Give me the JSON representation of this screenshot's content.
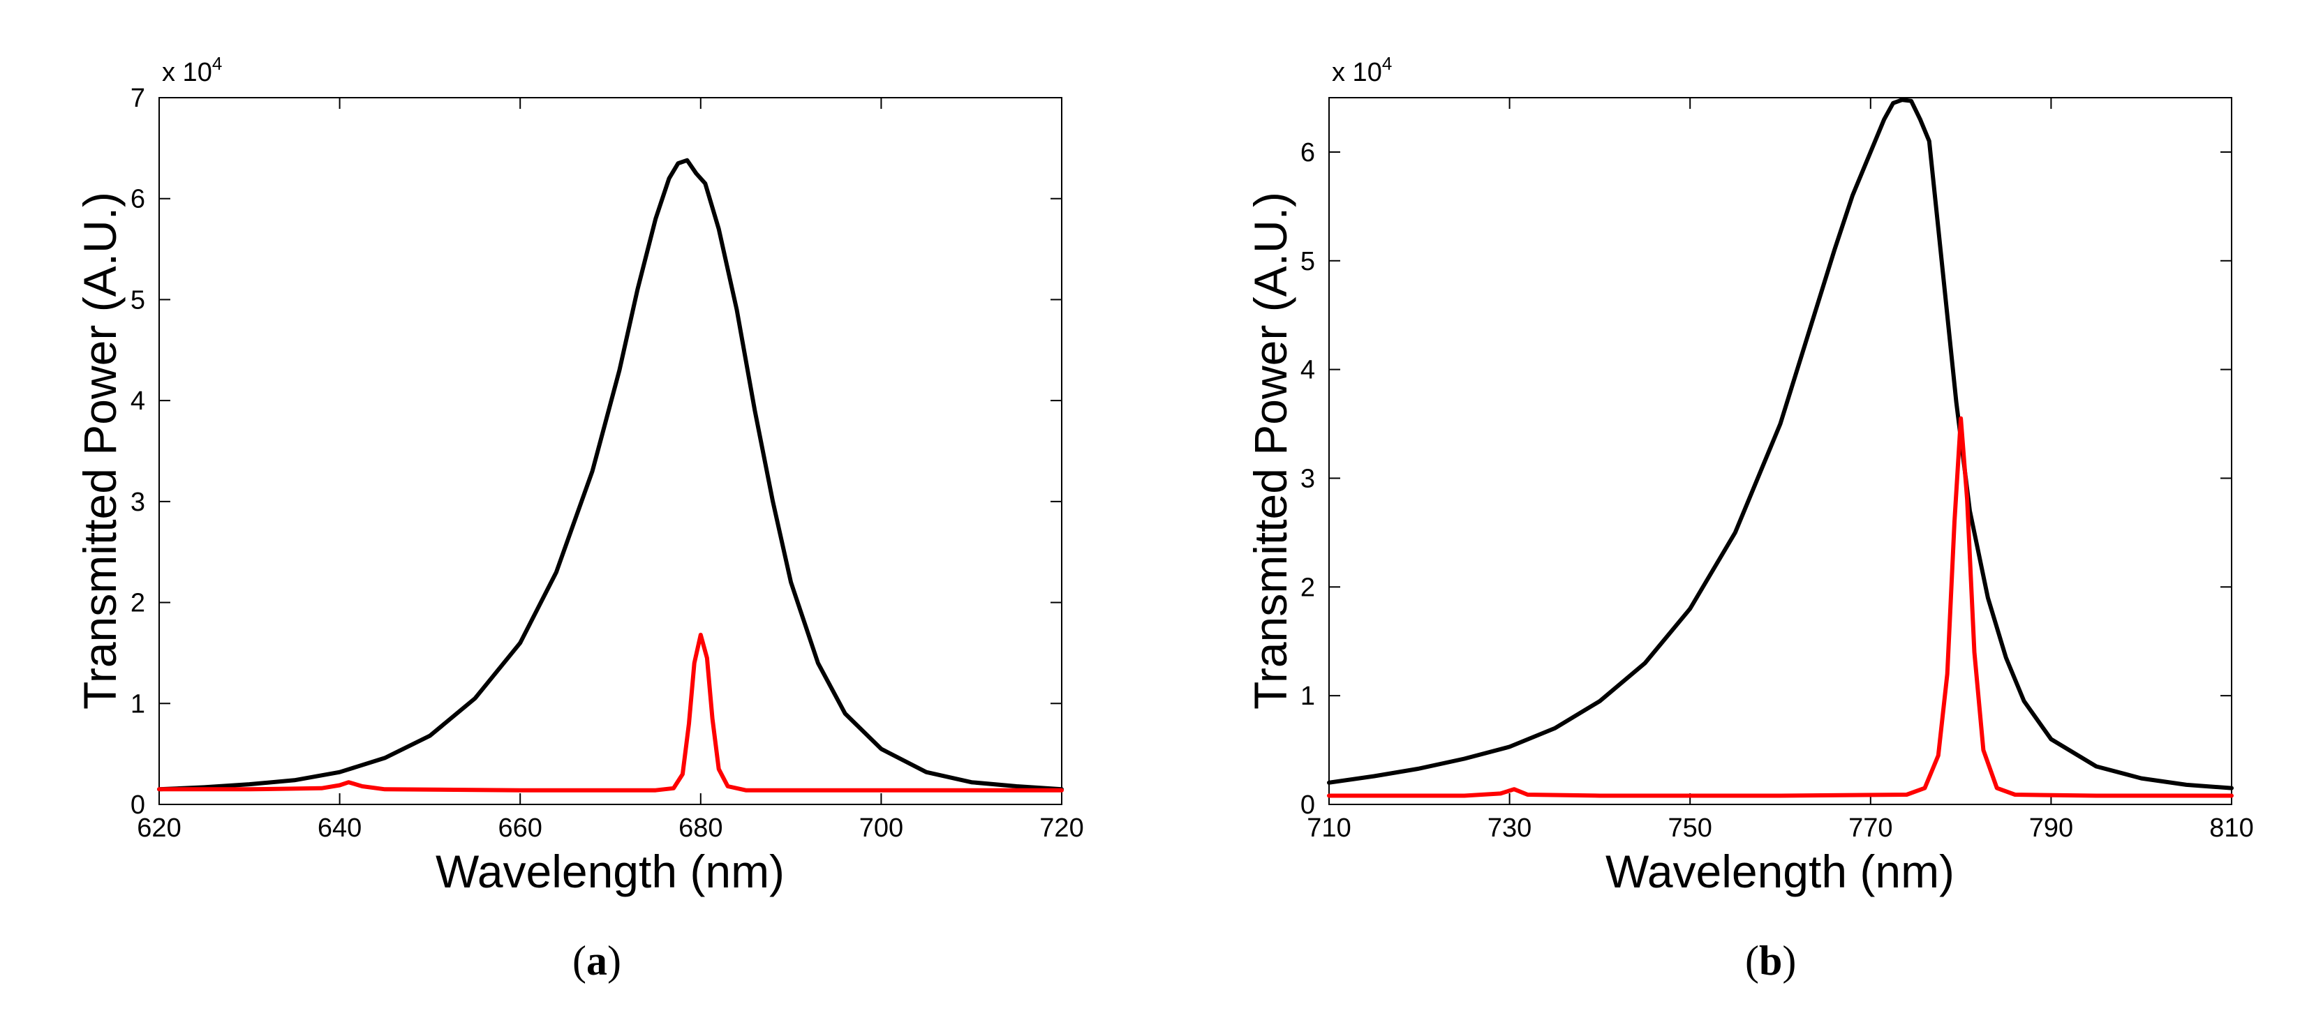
{
  "chart_data": [
    {
      "type": "line",
      "panel_label": "a",
      "caption_open": "(",
      "caption_close": ")",
      "xlabel": "Wavelength (nm)",
      "ylabel": "Transmitted Power (A.U.)",
      "y_multiplier": "x 10",
      "y_multiplier_exp": "4",
      "xlim": [
        620,
        720
      ],
      "ylim": [
        0,
        7
      ],
      "xticks": [
        620,
        640,
        660,
        680,
        700,
        720
      ],
      "yticks": [
        0,
        1,
        2,
        3,
        4,
        5,
        6,
        7
      ],
      "series": [
        {
          "name": "black",
          "color": "#000000",
          "x": [
            620,
            625,
            630,
            635,
            640,
            645,
            650,
            655,
            660,
            664,
            668,
            671,
            673,
            675,
            676.5,
            677.5,
            678.5,
            679.5,
            680.5,
            682,
            684,
            686,
            688,
            690,
            693,
            696,
            700,
            705,
            710,
            715,
            720
          ],
          "y": [
            0.15,
            0.17,
            0.2,
            0.24,
            0.32,
            0.46,
            0.68,
            1.05,
            1.6,
            2.3,
            3.3,
            4.3,
            5.1,
            5.8,
            6.2,
            6.35,
            6.38,
            6.25,
            6.15,
            5.7,
            4.9,
            3.9,
            3.0,
            2.2,
            1.4,
            0.9,
            0.55,
            0.32,
            0.22,
            0.18,
            0.15
          ]
        },
        {
          "name": "red",
          "color": "#ff0000",
          "x": [
            620,
            630,
            638,
            640,
            641,
            642.5,
            645,
            660,
            675,
            677,
            678,
            678.7,
            679.3,
            680,
            680.7,
            681.3,
            682,
            683,
            685,
            700,
            720
          ],
          "y": [
            0.15,
            0.15,
            0.16,
            0.19,
            0.22,
            0.18,
            0.15,
            0.14,
            0.14,
            0.16,
            0.3,
            0.8,
            1.4,
            1.68,
            1.45,
            0.85,
            0.35,
            0.18,
            0.14,
            0.14,
            0.14
          ]
        }
      ]
    },
    {
      "type": "line",
      "panel_label": "b",
      "caption_open": "(",
      "caption_close": ")",
      "xlabel": "Wavelength (nm)",
      "ylabel": "Transmitted Power (A.U.)",
      "y_multiplier": "x 10",
      "y_multiplier_exp": "4",
      "xlim": [
        710,
        810
      ],
      "ylim": [
        0,
        6.5
      ],
      "xticks": [
        710,
        730,
        750,
        770,
        790,
        810
      ],
      "yticks": [
        0,
        1,
        2,
        3,
        4,
        5,
        6
      ],
      "series": [
        {
          "name": "black",
          "color": "#000000",
          "x": [
            710,
            715,
            720,
            725,
            730,
            735,
            740,
            745,
            750,
            755,
            760,
            763,
            766,
            768,
            770,
            771.5,
            772.5,
            773.5,
            774.5,
            775.5,
            776.5,
            777.5,
            778.5,
            779.5,
            781,
            783,
            785,
            787,
            790,
            795,
            800,
            805,
            810
          ],
          "y": [
            0.2,
            0.26,
            0.33,
            0.42,
            0.53,
            0.7,
            0.95,
            1.3,
            1.8,
            2.5,
            3.5,
            4.3,
            5.1,
            5.6,
            6.0,
            6.3,
            6.45,
            6.48,
            6.47,
            6.3,
            6.1,
            5.3,
            4.5,
            3.7,
            2.7,
            1.9,
            1.35,
            0.95,
            0.6,
            0.35,
            0.24,
            0.18,
            0.15
          ]
        },
        {
          "name": "red",
          "color": "#ff0000",
          "x": [
            710,
            725,
            729,
            730.5,
            732,
            740,
            760,
            774,
            776,
            777.5,
            778.5,
            779.3,
            780,
            780.7,
            781.5,
            782.5,
            784,
            786,
            795,
            810
          ],
          "y": [
            0.08,
            0.08,
            0.1,
            0.14,
            0.09,
            0.08,
            0.08,
            0.09,
            0.15,
            0.45,
            1.2,
            2.6,
            3.55,
            2.8,
            1.4,
            0.5,
            0.15,
            0.09,
            0.08,
            0.08
          ]
        }
      ]
    }
  ]
}
